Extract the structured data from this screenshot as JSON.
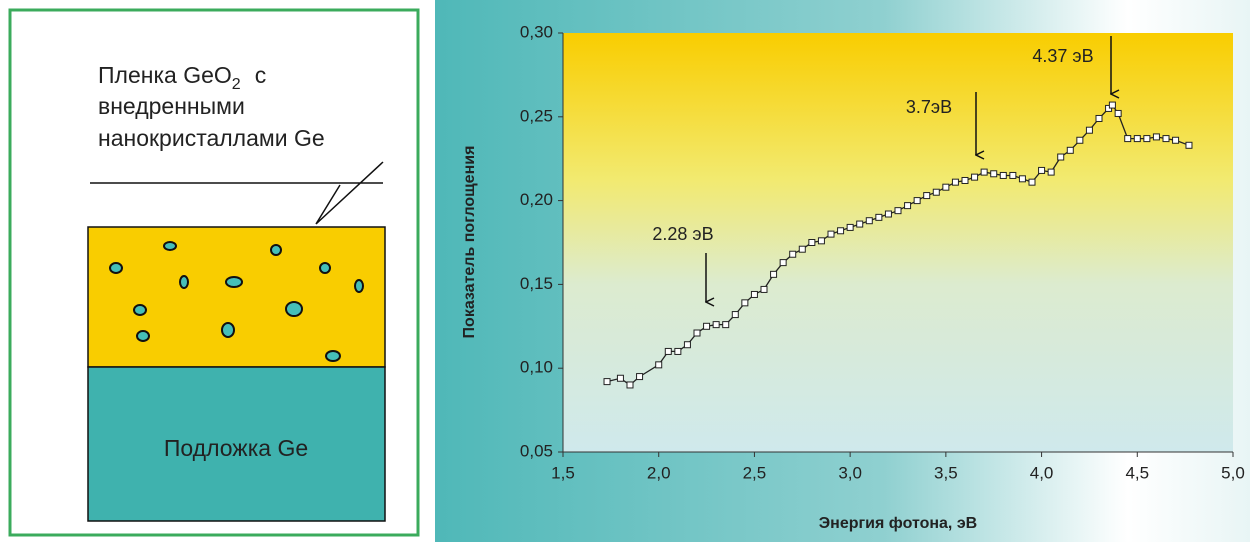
{
  "diagram": {
    "film_label": [
      "Пленка GeO",
      "2",
      "c",
      "внедренными",
      "нанокристаллами Ge"
    ],
    "substrate_label": "Подложка Ge"
  },
  "chart_data": {
    "type": "line",
    "y_label": "Показатель поглощения",
    "x_label": "Энергия фотона, эВ",
    "annotations": [
      "2.28 эВ",
      "3.7эВ",
      "4.37 эВ"
    ],
    "x": [
      1.73,
      1.8,
      1.85,
      1.9,
      2.0,
      2.05,
      2.1,
      2.15,
      2.2,
      2.25,
      2.3,
      2.35,
      2.4,
      2.45,
      2.5,
      2.55,
      2.6,
      2.65,
      2.7,
      2.75,
      2.8,
      2.85,
      2.9,
      2.95,
      3.0,
      3.05,
      3.1,
      3.15,
      3.2,
      3.25,
      3.3,
      3.35,
      3.4,
      3.45,
      3.5,
      3.55,
      3.6,
      3.65,
      3.7,
      3.75,
      3.8,
      3.85,
      3.9,
      3.95,
      4.0,
      4.05,
      4.1,
      4.15,
      4.2,
      4.25,
      4.3,
      4.35,
      4.37,
      4.4,
      4.45,
      4.5,
      4.55,
      4.6,
      4.65,
      4.7,
      4.77
    ],
    "series": [
      {
        "color": "#222222",
        "values": [
          0.092,
          0.094,
          0.09,
          0.095,
          0.102,
          0.11,
          0.11,
          0.114,
          0.121,
          0.125,
          0.126,
          0.126,
          0.132,
          0.139,
          0.144,
          0.147,
          0.156,
          0.163,
          0.168,
          0.171,
          0.175,
          0.176,
          0.18,
          0.182,
          0.184,
          0.186,
          0.188,
          0.19,
          0.192,
          0.194,
          0.197,
          0.2,
          0.203,
          0.205,
          0.208,
          0.211,
          0.212,
          0.214,
          0.217,
          0.216,
          0.215,
          0.215,
          0.213,
          0.211,
          0.218,
          0.217,
          0.226,
          0.23,
          0.236,
          0.242,
          0.249,
          0.255,
          0.257,
          0.252,
          0.237,
          0.237,
          0.237,
          0.238,
          0.237,
          0.236,
          0.233
        ]
      }
    ],
    "xlim": [
      1.5,
      5.0
    ],
    "xticks": [
      {
        "value": 1.5,
        "label": "1,5"
      },
      {
        "value": 2.0,
        "label": "2,0"
      },
      {
        "value": 2.5,
        "label": "2,5"
      },
      {
        "value": 3.0,
        "label": "3,0"
      },
      {
        "value": 3.5,
        "label": "3,5"
      },
      {
        "value": 4.0,
        "label": "4,0"
      },
      {
        "value": 4.5,
        "label": "4,5"
      },
      {
        "value": 5.0,
        "label": "5,0"
      }
    ],
    "ylim": [
      0.05,
      0.3
    ],
    "yticks": [
      {
        "value": 0.05,
        "label": "0,05"
      },
      {
        "value": 0.1,
        "label": "0,10"
      },
      {
        "value": 0.15,
        "label": "0,15"
      },
      {
        "value": 0.2,
        "label": "0,20"
      },
      {
        "value": 0.25,
        "label": "0,25"
      },
      {
        "value": 0.3,
        "label": "0,30"
      }
    ]
  }
}
